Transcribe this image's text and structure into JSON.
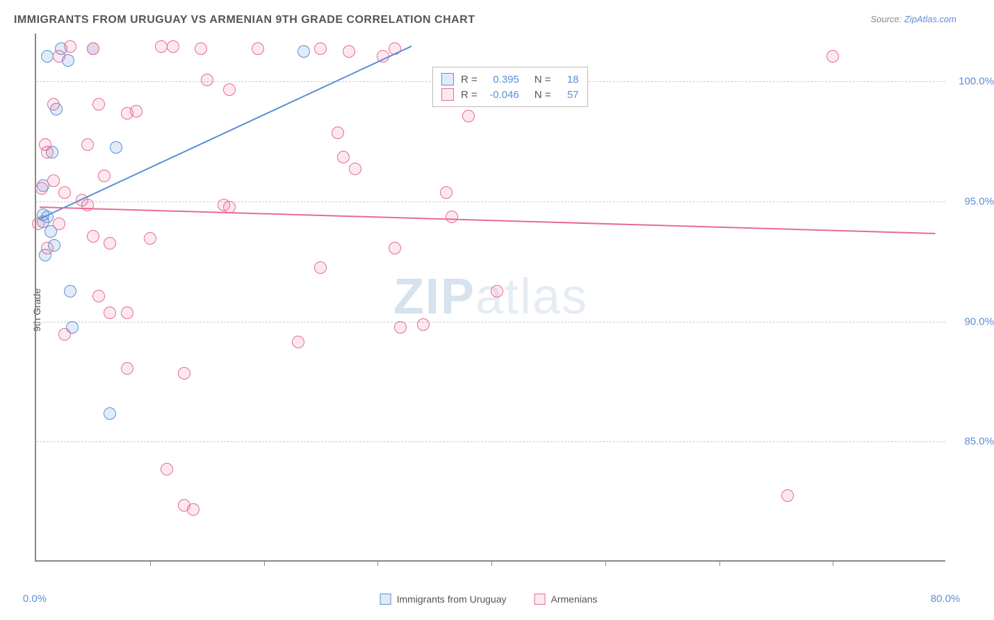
{
  "title": "IMMIGRANTS FROM URUGUAY VS ARMENIAN 9TH GRADE CORRELATION CHART",
  "source_label": "Source: ",
  "source_link": "ZipAtlas.com",
  "ylabel": "9th Grade",
  "watermark_bold": "ZIP",
  "watermark_light": "atlas",
  "chart": {
    "type": "scatter",
    "xlim": [
      0,
      80
    ],
    "ylim": [
      80,
      102
    ],
    "yticks": [
      {
        "v": 85,
        "label": "85.0%"
      },
      {
        "v": 90,
        "label": "90.0%"
      },
      {
        "v": 95,
        "label": "95.0%"
      },
      {
        "v": 100,
        "label": "100.0%"
      }
    ],
    "xticks_major": [
      {
        "v": 0,
        "label": "0.0%"
      },
      {
        "v": 80,
        "label": "80.0%"
      }
    ],
    "xticks_minor": [
      10,
      20,
      30,
      40,
      50,
      60,
      70
    ],
    "background_color": "#ffffff",
    "grid_color": "#cccccc",
    "axis_color": "#888888",
    "marker_radius": 9,
    "marker_fill_opacity": 0.15,
    "label_color": "#5a8fd6",
    "label_fontsize": 15,
    "title_fontsize": 16,
    "title_color": "#555555"
  },
  "series": [
    {
      "name": "Immigrants from Uruguay",
      "color": "#5a8fd6",
      "fill": "rgba(90,143,214,0.18)",
      "R": "0.395",
      "N": "18",
      "trend": {
        "x1": 0.3,
        "y1": 94.3,
        "x2": 33,
        "y2": 101.5
      },
      "points": [
        [
          2.2,
          101.3
        ],
        [
          2.8,
          100.8
        ],
        [
          1.8,
          98.8
        ],
        [
          1.4,
          97.0
        ],
        [
          7.0,
          97.2
        ],
        [
          0.6,
          95.6
        ],
        [
          0.6,
          94.4
        ],
        [
          0.6,
          94.1
        ],
        [
          1.0,
          94.3
        ],
        [
          1.3,
          93.7
        ],
        [
          1.6,
          93.1
        ],
        [
          0.8,
          92.7
        ],
        [
          3.0,
          91.2
        ],
        [
          3.2,
          89.7
        ],
        [
          6.5,
          86.1
        ],
        [
          23.5,
          101.2
        ],
        [
          5.0,
          101.3
        ],
        [
          1.0,
          101.0
        ]
      ]
    },
    {
      "name": "Armenians",
      "color": "#e86a92",
      "fill": "rgba(232,106,146,0.15)",
      "R": "-0.046",
      "N": "57",
      "trend": {
        "x1": 0.3,
        "y1": 94.8,
        "x2": 79,
        "y2": 93.7
      },
      "points": [
        [
          11.0,
          101.4
        ],
        [
          12.0,
          101.4
        ],
        [
          14.5,
          101.3
        ],
        [
          25.0,
          101.3
        ],
        [
          27.5,
          101.2
        ],
        [
          30.5,
          101.0
        ],
        [
          31.5,
          101.3
        ],
        [
          70.0,
          101.0
        ],
        [
          17.0,
          99.6
        ],
        [
          5.5,
          99.0
        ],
        [
          8.0,
          98.6
        ],
        [
          8.8,
          98.7
        ],
        [
          26.5,
          97.8
        ],
        [
          4.5,
          97.3
        ],
        [
          6.0,
          96.0
        ],
        [
          1.0,
          97.0
        ],
        [
          2.5,
          95.3
        ],
        [
          4.0,
          95.0
        ],
        [
          4.5,
          94.8
        ],
        [
          27.0,
          96.8
        ],
        [
          28.0,
          96.3
        ],
        [
          36.0,
          95.3
        ],
        [
          38.0,
          98.5
        ],
        [
          16.5,
          94.8
        ],
        [
          5.0,
          93.5
        ],
        [
          6.5,
          93.2
        ],
        [
          10.0,
          93.4
        ],
        [
          17.0,
          94.7
        ],
        [
          25.0,
          92.2
        ],
        [
          31.5,
          93.0
        ],
        [
          32.0,
          89.7
        ],
        [
          23.0,
          89.1
        ],
        [
          6.5,
          90.3
        ],
        [
          8.0,
          90.3
        ],
        [
          2.5,
          89.4
        ],
        [
          40.5,
          91.2
        ],
        [
          8.0,
          88.0
        ],
        [
          13.0,
          87.8
        ],
        [
          11.5,
          83.8
        ],
        [
          13.0,
          82.3
        ],
        [
          13.8,
          82.1
        ],
        [
          66.0,
          82.7
        ],
        [
          5.5,
          91.0
        ],
        [
          0.5,
          95.5
        ],
        [
          0.8,
          97.3
        ],
        [
          1.5,
          99.0
        ],
        [
          2.0,
          101.0
        ],
        [
          0.2,
          94.0
        ],
        [
          1.0,
          93.0
        ],
        [
          2.0,
          94.0
        ],
        [
          3.0,
          101.4
        ],
        [
          15.0,
          100.0
        ],
        [
          19.5,
          101.3
        ],
        [
          34.0,
          89.8
        ],
        [
          5.0,
          101.3
        ],
        [
          36.5,
          94.3
        ],
        [
          1.5,
          95.8
        ]
      ]
    }
  ],
  "legend": {
    "r_label": "R =",
    "n_label": "N ="
  }
}
